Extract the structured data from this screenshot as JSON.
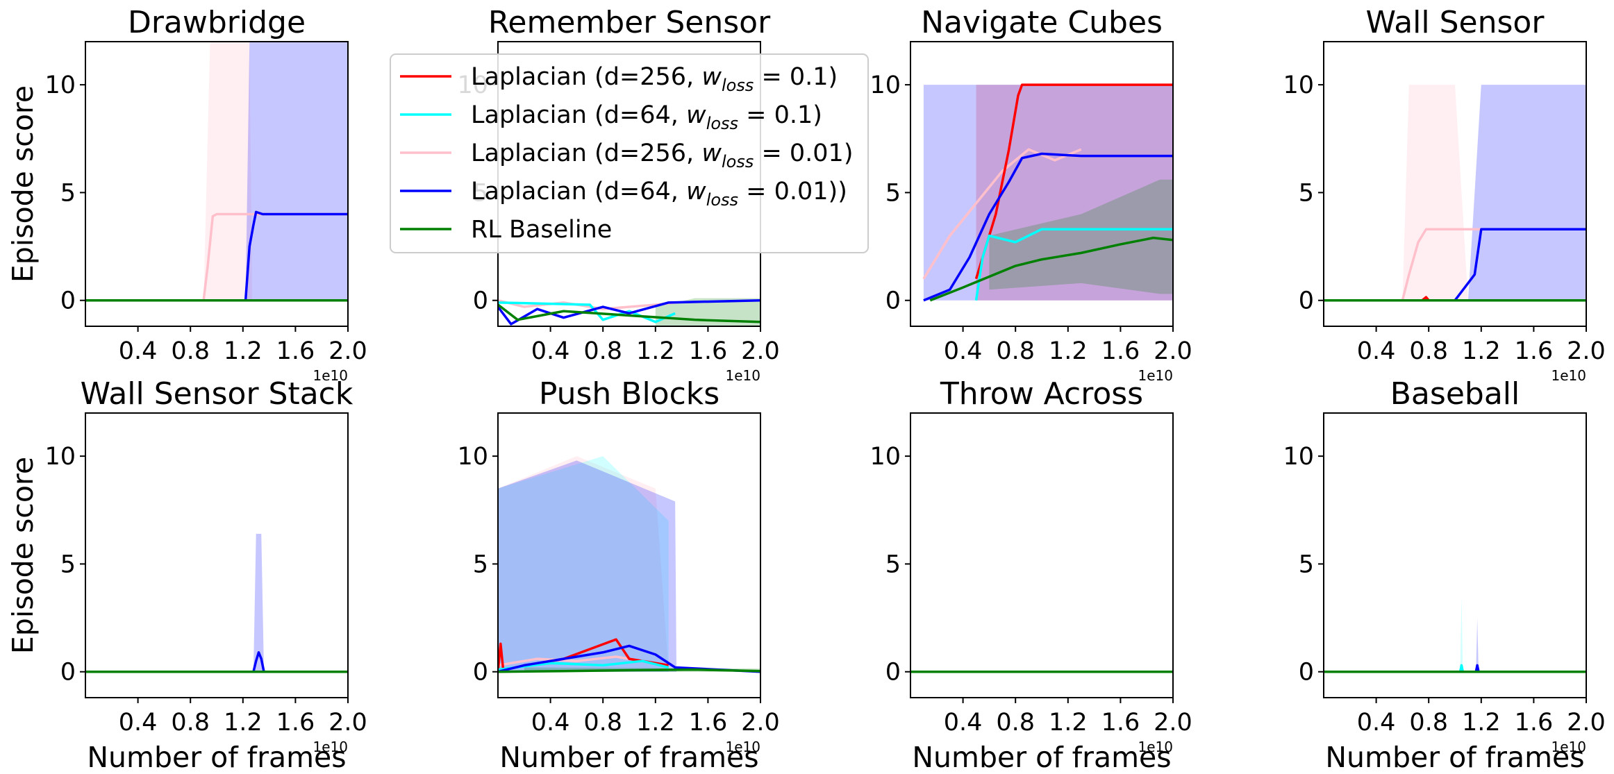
{
  "figure": {
    "ylabel": "Episode score",
    "xlabel": "Number of frames",
    "x_offset_label": "1e10"
  },
  "legend": {
    "placement": "top-center (over Remember Sensor panel)",
    "entries": [
      {
        "key": "lap256_01",
        "prefix": "Laplacian (d=256, ",
        "wname": "w",
        "wsub": "loss",
        "value": " = 0.1)",
        "color": "#ff0000"
      },
      {
        "key": "lap64_01",
        "prefix": "Laplacian (d=64, ",
        "wname": "w",
        "wsub": "loss",
        "value": " = 0.1)",
        "color": "#00ffff"
      },
      {
        "key": "lap256_001",
        "prefix": "Laplacian (d=256, ",
        "wname": "w",
        "wsub": "loss",
        "value": " = 0.01)",
        "color": "#ffc0cb"
      },
      {
        "key": "lap64_001",
        "prefix": "Laplacian (d=64, ",
        "wname": "w",
        "wsub": "loss",
        "value": " = 0.01))",
        "color": "#0000ff"
      },
      {
        "key": "rl",
        "text": "RL Baseline",
        "color": "#008000"
      }
    ]
  },
  "chart_data": [
    {
      "type": "line",
      "title": "Drawbridge",
      "xlim": [
        0,
        20000000000.0
      ],
      "ylim": [
        -1.2,
        12
      ],
      "xticks": [
        "0.4",
        "0.8",
        "1.2",
        "1.6",
        "2.0"
      ],
      "yticks": [
        "0",
        "5",
        "10"
      ],
      "series": [
        {
          "key": "lap256_001",
          "x": [
            0,
            9000000000.0,
            9300000000.0,
            9700000000.0,
            10000000000.0,
            12500000000.0,
            20000000000.0
          ],
          "y": [
            0,
            0,
            1.5,
            3.9,
            4,
            4,
            4
          ],
          "band": [
            [
              9000000000.0,
              0,
              0
            ],
            [
              9500000000.0,
              0,
              12
            ],
            [
              12500000000.0,
              0,
              12
            ],
            [
              12700000000.0,
              0,
              0
            ]
          ]
        },
        {
          "key": "lap64_001",
          "x": [
            0,
            12200000000.0,
            12500000000.0,
            12800000000.0,
            13000000000.0,
            13500000000.0,
            20000000000.0
          ],
          "y": [
            0,
            0,
            2.5,
            3.5,
            4.1,
            4,
            4
          ],
          "band": [
            [
              12200000000.0,
              0,
              0
            ],
            [
              12500000000.0,
              0,
              12
            ],
            [
              20000000000.0,
              0,
              12
            ]
          ]
        },
        {
          "key": "rl",
          "x": [
            0,
            20000000000.0
          ],
          "y": [
            0,
            0
          ]
        }
      ]
    },
    {
      "type": "line",
      "title": "Remember Sensor",
      "xlim": [
        0,
        20000000000.0
      ],
      "ylim": [
        -1.2,
        12
      ],
      "xticks": [
        "0.4",
        "0.8",
        "1.2",
        "1.6",
        "2.0"
      ],
      "yticks": [
        "0",
        "5",
        "10"
      ],
      "series": [
        {
          "key": "lap256_001",
          "x": [
            0,
            2000000000.0,
            5000000000.0,
            8000000000.0,
            12000000000.0,
            13500000000.0
          ],
          "y": [
            0,
            -0.3,
            -0.1,
            -0.4,
            -0.2,
            -0.1
          ]
        },
        {
          "key": "lap64_01",
          "x": [
            0,
            7000000000.0,
            8000000000.0,
            10000000000.0,
            12000000000.0,
            13500000000.0
          ],
          "y": [
            -0.1,
            -0.2,
            -0.9,
            -0.5,
            -1.0,
            -0.6
          ]
        },
        {
          "key": "lap64_001",
          "x": [
            0,
            1000000000.0,
            3000000000.0,
            5000000000.0,
            8000000000.0,
            10000000000.0,
            13000000000.0,
            20000000000.0
          ],
          "y": [
            -0.3,
            -1.1,
            -0.4,
            -0.8,
            -0.3,
            -0.6,
            -0.1,
            0
          ]
        },
        {
          "key": "rl",
          "x": [
            0,
            1500000000.0,
            5000000000.0,
            10000000000.0,
            15000000000.0,
            20000000000.0
          ],
          "y": [
            -0.2,
            -0.9,
            -0.5,
            -0.7,
            -0.9,
            -1.0
          ],
          "band": [
            [
              12000000000.0,
              -1.2,
              -0.3
            ],
            [
              15000000000.0,
              -1.2,
              0.1
            ],
            [
              20000000000.0,
              -1.2,
              0.1
            ]
          ]
        }
      ]
    },
    {
      "type": "line",
      "title": "Navigate Cubes",
      "xlim": [
        0,
        20000000000.0
      ],
      "ylim": [
        -1.2,
        12
      ],
      "xticks": [
        "0.4",
        "0.8",
        "1.2",
        "1.6",
        "2.0"
      ],
      "yticks": [
        "0",
        "5",
        "10"
      ],
      "series": [
        {
          "key": "lap256_001",
          "x": [
            1000000000.0,
            3000000000.0,
            5000000000.0,
            7000000000.0,
            9000000000.0,
            11000000000.0,
            13000000000.0
          ],
          "y": [
            1,
            3,
            4.5,
            6,
            7,
            6.5,
            7
          ]
        },
        {
          "key": "lap256_01",
          "x": [
            5000000000.0,
            6500000000.0,
            7500000000.0,
            8200000000.0,
            8500000000.0,
            20000000000.0
          ],
          "y": [
            1,
            4,
            7,
            9.5,
            10,
            10
          ],
          "band": [
            [
              5000000000.0,
              0,
              10
            ],
            [
              20000000000.0,
              0,
              10
            ]
          ]
        },
        {
          "key": "lap64_01",
          "x": [
            5000000000.0,
            5500000000.0,
            6000000000.0,
            8000000000.0,
            10000000000.0,
            13000000000.0,
            20000000000.0
          ],
          "y": [
            0,
            2,
            3,
            2.7,
            3.3,
            3.3,
            3.3
          ]
        },
        {
          "key": "lap64_001",
          "x": [
            1000000000.0,
            3000000000.0,
            4500000000.0,
            6000000000.0,
            7500000000.0,
            8500000000.0,
            10000000000.0,
            13000000000.0,
            20000000000.0
          ],
          "y": [
            0,
            0.5,
            2,
            4,
            5.5,
            6.6,
            6.8,
            6.7,
            6.7
          ],
          "band": [
            [
              1000000000.0,
              0,
              10
            ],
            [
              20000000000.0,
              0,
              10
            ]
          ]
        },
        {
          "key": "rl",
          "x": [
            1500000000.0,
            4000000000.0,
            8000000000.0,
            10000000000.0,
            13000000000.0,
            16000000000.0,
            18500000000.0,
            20000000000.0
          ],
          "y": [
            0,
            0.6,
            1.6,
            1.9,
            2.2,
            2.6,
            2.9,
            2.8
          ],
          "band": [
            [
              6000000000.0,
              0.5,
              3.0
            ],
            [
              13000000000.0,
              0.8,
              4.0
            ],
            [
              19000000000.0,
              0.3,
              5.6
            ],
            [
              20000000000.0,
              0.3,
              5.6
            ]
          ]
        }
      ]
    },
    {
      "type": "line",
      "title": "Wall Sensor",
      "xlim": [
        0,
        20000000000.0
      ],
      "ylim": [
        -1.2,
        12
      ],
      "xticks": [
        "0.4",
        "0.8",
        "1.2",
        "1.6",
        "2.0"
      ],
      "yticks": [
        "0",
        "5",
        "10"
      ],
      "series": [
        {
          "key": "lap256_001",
          "x": [
            0,
            6000000000.0,
            6500000000.0,
            7200000000.0,
            7800000000.0,
            20000000000.0
          ],
          "y": [
            0,
            0,
            1.2,
            2.7,
            3.3,
            3.3
          ],
          "band": [
            [
              6000000000.0,
              0,
              0
            ],
            [
              6500000000.0,
              0,
              10
            ],
            [
              10000000000.0,
              0,
              10
            ],
            [
              11000000000.0,
              0,
              0
            ]
          ]
        },
        {
          "key": "lap256_01",
          "x": [
            7500000000.0,
            7800000000.0,
            8000000000.0
          ],
          "y": [
            0,
            0.15,
            0
          ]
        },
        {
          "key": "lap64_001",
          "x": [
            0,
            10000000000.0,
            11500000000.0,
            12000000000.0,
            20000000000.0
          ],
          "y": [
            0,
            0,
            1.2,
            3.3,
            3.3
          ],
          "band": [
            [
              11000000000.0,
              0,
              0
            ],
            [
              12000000000.0,
              0,
              10
            ],
            [
              20000000000.0,
              0,
              10
            ]
          ]
        },
        {
          "key": "rl",
          "x": [
            0,
            20000000000.0
          ],
          "y": [
            0,
            0
          ]
        }
      ]
    },
    {
      "type": "line",
      "title": "Wall Sensor Stack",
      "xlim": [
        0,
        20000000000.0
      ],
      "ylim": [
        -1.2,
        12
      ],
      "xticks": [
        "0.4",
        "0.8",
        "1.2",
        "1.6",
        "2.0"
      ],
      "yticks": [
        "0",
        "5",
        "10"
      ],
      "series": [
        {
          "key": "lap64_001",
          "x": [
            0,
            12800000000.0,
            13000000000.0,
            13200000000.0,
            13400000000.0,
            13600000000.0,
            20000000000.0
          ],
          "y": [
            0,
            0,
            0.5,
            0.9,
            0.6,
            0,
            0
          ],
          "band": [
            [
              12800000000.0,
              0,
              0
            ],
            [
              13000000000.0,
              0,
              6.4
            ],
            [
              13400000000.0,
              0,
              6.4
            ],
            [
              13600000000.0,
              0,
              0
            ]
          ]
        },
        {
          "key": "rl",
          "x": [
            0,
            20000000000.0
          ],
          "y": [
            0,
            0
          ]
        }
      ]
    },
    {
      "type": "line",
      "title": "Push Blocks",
      "xlim": [
        0,
        20000000000.0
      ],
      "ylim": [
        -1.2,
        12
      ],
      "xticks": [
        "0.4",
        "0.8",
        "1.2",
        "1.6",
        "2.0"
      ],
      "yticks": [
        "0",
        "5",
        "10"
      ],
      "series": [
        {
          "key": "lap256_001",
          "x": [
            0,
            3000000000.0,
            6000000000.0,
            9000000000.0,
            12000000000.0
          ],
          "y": [
            0.3,
            0.6,
            0.5,
            0.7,
            0.4
          ],
          "band": [
            [
              0,
              0,
              8.5
            ],
            [
              6000000000.0,
              0,
              10
            ],
            [
              12000000000.0,
              0,
              8.5
            ],
            [
              13000000000.0,
              0,
              0
            ]
          ]
        },
        {
          "key": "lap256_01",
          "x": [
            0,
            200000000.0,
            400000000.0,
            5000000000.0,
            9000000000.0,
            10000000000.0,
            13000000000.0
          ],
          "y": [
            0,
            1.3,
            0.1,
            0.6,
            1.5,
            0.6,
            0.3
          ]
        },
        {
          "key": "lap64_01",
          "x": [
            0,
            4000000000.0,
            8000000000.0,
            11000000000.0,
            13000000000.0
          ],
          "y": [
            0.1,
            0.4,
            0.3,
            0.5,
            0.2
          ],
          "band": [
            [
              0,
              0,
              8.5
            ],
            [
              8000000000.0,
              0,
              10
            ],
            [
              13000000000.0,
              0,
              7
            ]
          ]
        },
        {
          "key": "lap64_001",
          "x": [
            0,
            2000000000.0,
            5000000000.0,
            8000000000.0,
            10000000000.0,
            12000000000.0,
            13500000000.0,
            20000000000.0
          ],
          "y": [
            0,
            0.3,
            0.6,
            0.9,
            1.2,
            0.8,
            0.2,
            0
          ],
          "band": [
            [
              0,
              0,
              8.5
            ],
            [
              6000000000.0,
              0,
              9.8
            ],
            [
              13500000000.0,
              0,
              7.9
            ],
            [
              13600000000.0,
              0,
              0
            ]
          ]
        },
        {
          "key": "rl",
          "x": [
            0,
            5000000000.0,
            10000000000.0,
            15000000000.0,
            20000000000.0
          ],
          "y": [
            0,
            0.03,
            0.07,
            0.1,
            0.03
          ],
          "band": [
            [
              2000000000.0,
              0,
              0.2
            ],
            [
              20000000000.0,
              0,
              0.15
            ]
          ]
        }
      ]
    },
    {
      "type": "line",
      "title": "Throw Across",
      "xlim": [
        0,
        20000000000.0
      ],
      "ylim": [
        -1.2,
        12
      ],
      "xticks": [
        "0.4",
        "0.8",
        "1.2",
        "1.6",
        "2.0"
      ],
      "yticks": [
        "0",
        "5",
        "10"
      ],
      "series": [
        {
          "key": "lap64_001",
          "x": [
            0,
            20000000000.0
          ],
          "y": [
            0,
            0
          ]
        },
        {
          "key": "rl",
          "x": [
            0,
            20000000000.0
          ],
          "y": [
            0,
            0
          ]
        }
      ]
    },
    {
      "type": "line",
      "title": "Baseball",
      "xlim": [
        0,
        20000000000.0
      ],
      "ylim": [
        -1.2,
        12
      ],
      "xticks": [
        "0.4",
        "0.8",
        "1.2",
        "1.6",
        "2.0"
      ],
      "yticks": [
        "0",
        "5",
        "10"
      ],
      "series": [
        {
          "key": "lap64_01",
          "x": [
            0,
            10400000000.0,
            10500000000.0,
            10600000000.0,
            20000000000.0
          ],
          "y": [
            0,
            0,
            0.3,
            0,
            0
          ],
          "band": [
            [
              10400000000.0,
              0,
              0
            ],
            [
              10500000000.0,
              0,
              3.5
            ],
            [
              10600000000.0,
              0,
              0
            ]
          ]
        },
        {
          "key": "lap64_001",
          "x": [
            0,
            11600000000.0,
            11700000000.0,
            11800000000.0,
            20000000000.0
          ],
          "y": [
            0,
            0,
            0.3,
            0,
            0
          ],
          "band": [
            [
              11600000000.0,
              0,
              0
            ],
            [
              11700000000.0,
              0,
              2.5
            ],
            [
              11800000000.0,
              0,
              0
            ]
          ]
        },
        {
          "key": "rl",
          "x": [
            0,
            20000000000.0
          ],
          "y": [
            0,
            0
          ]
        }
      ]
    }
  ]
}
